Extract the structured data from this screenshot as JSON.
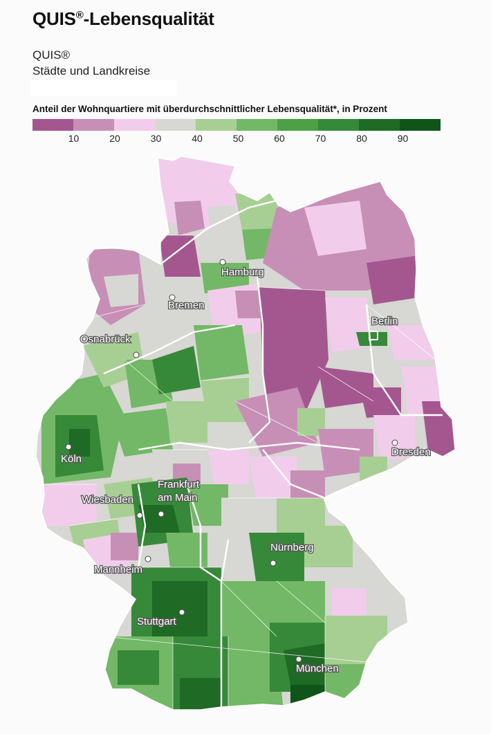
{
  "header": {
    "title_main": "QUIS",
    "title_reg": "®",
    "title_rest": "-Lebensqualität",
    "subtitle_line1": "QUIS®",
    "subtitle_line2": "Städte und Landkreise"
  },
  "legend": {
    "title": "Anteil der Wohnquartiere mit überdurchschnittlicher Lebensqualität*, in Prozent",
    "ticks": [
      "10",
      "20",
      "30",
      "40",
      "50",
      "60",
      "70",
      "80",
      "90"
    ],
    "colors": [
      "#a4578f",
      "#c88fb6",
      "#f1cdeb",
      "#d7d7d3",
      "#a7cf93",
      "#72b866",
      "#4e9f46",
      "#37893a",
      "#1f6a24",
      "#0f5418"
    ]
  },
  "map": {
    "cities": [
      {
        "name": "Hamburg",
        "symbol": "dot"
      },
      {
        "name": "Bremen",
        "symbol": "dot"
      },
      {
        "name": "Berlin",
        "symbol": "square"
      },
      {
        "name": "Osnabrück",
        "symbol": "dot"
      },
      {
        "name": "Köln",
        "symbol": "dot"
      },
      {
        "name": "Dresden",
        "symbol": "dot"
      },
      {
        "name": "Wiesbaden",
        "symbol": "dot"
      },
      {
        "name": "Frankfurt",
        "symbol": "dot"
      },
      {
        "name": "am Main",
        "symbol": "none"
      },
      {
        "name": "Nürnberg",
        "symbol": "dot"
      },
      {
        "name": "Mannheim",
        "symbol": "dot"
      },
      {
        "name": "Stuttgart",
        "symbol": "dot"
      },
      {
        "name": "München",
        "symbol": "dot"
      }
    ]
  }
}
